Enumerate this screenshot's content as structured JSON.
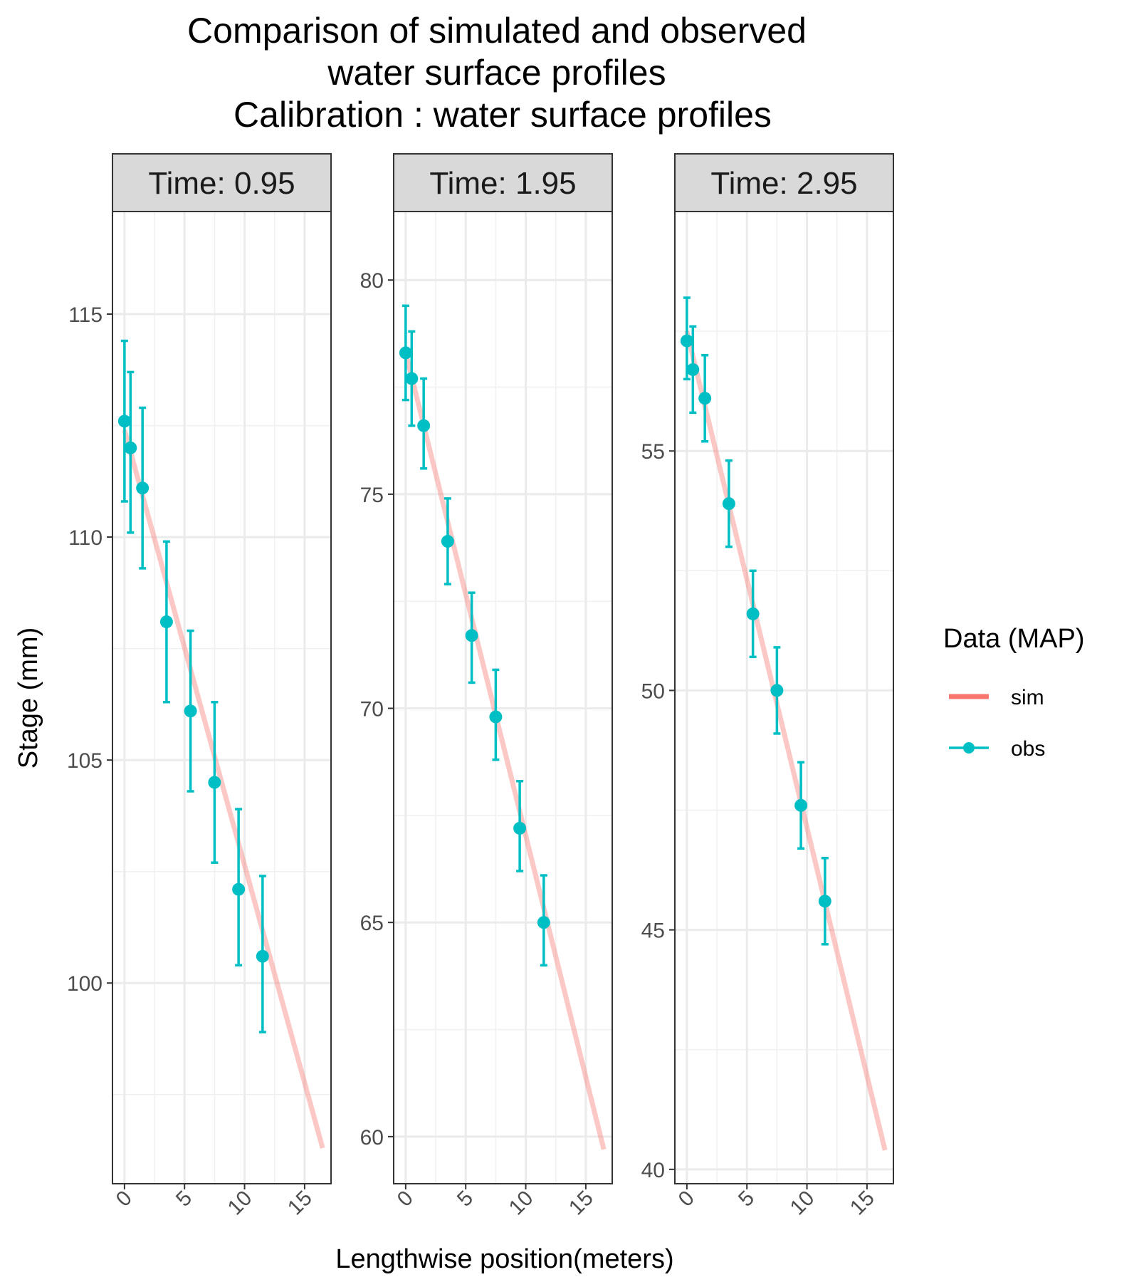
{
  "chart_data": {
    "type": "line",
    "title": [
      "Comparison of simulated and observed",
      "water surface profiles",
      "Calibration : water surface profiles"
    ],
    "xlabel": "Lengthwise position(meters)",
    "ylabel": "Stage (mm)",
    "grid": true,
    "legend": {
      "title": "Data (MAP)",
      "position": "right",
      "entries": [
        {
          "name": "sim",
          "color": "#F8766D",
          "type": "line"
        },
        {
          "name": "obs",
          "color": "#00BFC4",
          "type": "point-errorbar"
        }
      ]
    },
    "xlim": [
      -1,
      17.2
    ],
    "x_ticks": [
      0,
      5,
      10,
      15
    ],
    "x_tick_labels": [
      "0",
      "5",
      "10",
      "15"
    ],
    "panels": [
      {
        "strip": "Time:  0.95",
        "ylim": [
          95.5,
          117.3
        ],
        "y_ticks": [
          100,
          105,
          110,
          115
        ],
        "y_tick_labels": [
          "100",
          "105",
          "110",
          "115"
        ],
        "sim": {
          "x": [
            0,
            16.5
          ],
          "y": [
            112.4,
            96.3
          ]
        },
        "obs": {
          "x": [
            0,
            0.5,
            1.5,
            3.5,
            5.5,
            7.5,
            9.5,
            11.5
          ],
          "y": [
            112.6,
            112.0,
            111.1,
            108.1,
            106.1,
            104.5,
            102.1,
            100.6
          ],
          "ymin": [
            110.8,
            110.1,
            109.3,
            106.3,
            104.3,
            102.7,
            100.4,
            98.9
          ],
          "ymax": [
            114.4,
            113.7,
            112.9,
            109.9,
            107.9,
            106.3,
            103.9,
            102.4
          ]
        }
      },
      {
        "strip": "Time:  1.95",
        "ylim": [
          58.9,
          81.6
        ],
        "y_ticks": [
          60,
          65,
          70,
          75,
          80
        ],
        "y_tick_labels": [
          "60",
          "65",
          "70",
          "75",
          "80"
        ],
        "sim": {
          "x": [
            0,
            16.5
          ],
          "y": [
            78.3,
            59.7
          ]
        },
        "obs": {
          "x": [
            0,
            0.5,
            1.5,
            3.5,
            5.5,
            7.5,
            9.5,
            11.5
          ],
          "y": [
            78.3,
            77.7,
            76.6,
            73.9,
            71.7,
            69.8,
            67.2,
            65.0
          ],
          "ymin": [
            77.2,
            76.6,
            75.6,
            72.9,
            70.6,
            68.8,
            66.2,
            64.0
          ],
          "ymax": [
            79.4,
            78.8,
            77.7,
            74.9,
            72.7,
            70.9,
            68.3,
            66.1
          ]
        }
      },
      {
        "strip": "Time:  2.95",
        "ylim": [
          39.7,
          60.0
        ],
        "y_ticks": [
          40,
          45,
          50,
          55
        ],
        "y_tick_labels": [
          "40",
          "45",
          "50",
          "55"
        ],
        "sim": {
          "x": [
            0,
            16.5
          ],
          "y": [
            57.5,
            40.4
          ]
        },
        "obs": {
          "x": [
            0,
            0.5,
            1.5,
            3.5,
            5.5,
            7.5,
            9.5,
            11.5
          ],
          "y": [
            57.3,
            56.7,
            56.1,
            53.9,
            51.6,
            50.0,
            47.6,
            45.6
          ],
          "ymin": [
            56.5,
            55.8,
            55.2,
            53.0,
            50.7,
            49.1,
            46.7,
            44.7
          ],
          "ymax": [
            58.2,
            57.6,
            57.0,
            54.8,
            52.5,
            50.9,
            48.5,
            46.5
          ]
        }
      }
    ]
  }
}
